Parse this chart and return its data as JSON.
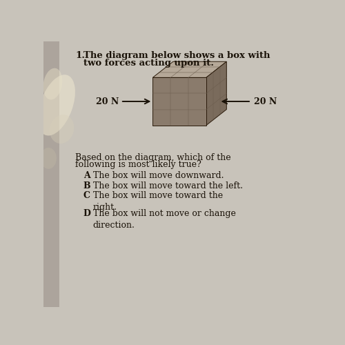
{
  "bg_color": "#c8c3ba",
  "bg_color_right": "#d0cbc2",
  "question_number": "1.",
  "question_text_line1": "The diagram below shows a box with",
  "question_text_line2": "two forces acting upon it.",
  "force_left_label": "20 N",
  "force_right_label": "20 N",
  "followup_line1": "Based on the diagram, which of the",
  "followup_line2": "following is most likely true?",
  "box_front_color": "#8a7b6c",
  "box_top_color": "#b5a898",
  "box_side_color": "#7a6b5c",
  "box_edge_color": "#2a1a0a",
  "box_grid_color": "#6a5b4c",
  "text_color": "#1a1208",
  "font_size_question": 9.5,
  "font_size_body": 9.0,
  "font_size_choices": 9.0,
  "left_photo_color1": "#e8e0c8",
  "left_photo_color2": "#b8a888"
}
